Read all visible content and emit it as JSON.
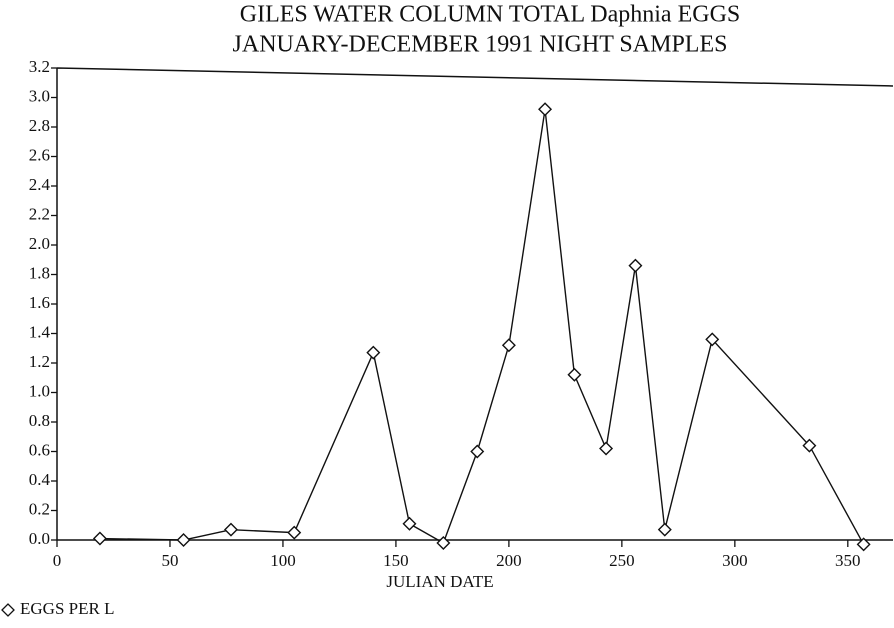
{
  "chart_data": {
    "type": "line",
    "title": [
      "GILES WATER COLUMN TOTAL Daphnia EGGS",
      "JANUARY-DECEMBER 1991 NIGHT SAMPLES"
    ],
    "xlabel": "JULIAN DATE",
    "x": [
      19,
      56,
      77,
      105,
      140,
      156,
      171,
      186,
      200,
      216,
      229,
      243,
      256,
      269,
      290,
      333,
      357
    ],
    "series": [
      {
        "name": "EGGS PER L",
        "color": "#111111",
        "values": [
          0.01,
          0,
          0.07,
          0.05,
          1.27,
          0.11,
          -0.02,
          0.6,
          1.32,
          2.92,
          1.12,
          0.62,
          1.86,
          0.07,
          1.36,
          0.64,
          -0.03
        ]
      }
    ],
    "xlim": [
      0,
      370
    ],
    "xticks": [
      0,
      50,
      100,
      150,
      200,
      250,
      300,
      350
    ],
    "ylim": [
      0,
      3.2
    ],
    "yticks": [
      {
        "value": 0,
        "label": "0.0"
      },
      0.2,
      0.4,
      0.6,
      0.8,
      {
        "value": 1,
        "label": "1.0"
      },
      1.2,
      1.4,
      1.6,
      1.8,
      {
        "value": 2,
        "label": "2.0"
      },
      2.2,
      2.4,
      2.6,
      2.8,
      {
        "value": 3,
        "label": "3.0"
      },
      3.2
    ],
    "grid": false
  }
}
